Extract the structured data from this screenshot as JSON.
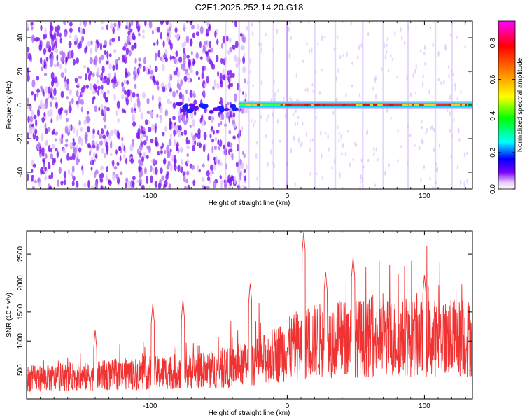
{
  "figure_title": "C2E1.2025.252.14.20.G18",
  "chart_data": [
    {
      "type": "heatmap",
      "title": "C2E1.2025.252.14.20.G18",
      "xlabel": "Height of straight line (km)",
      "ylabel": "Frequency (Hz)",
      "xlim": [
        -190,
        135
      ],
      "ylim": [
        -50,
        50
      ],
      "x_ticks": [
        -100,
        0,
        100
      ],
      "y_ticks": [
        -40,
        -20,
        0,
        20,
        40
      ],
      "colorbar": {
        "label": "Normalized spectral amplitude",
        "range": [
          0,
          0.92
        ],
        "ticks": [
          0.0,
          0.2,
          0.4,
          0.6,
          0.8
        ]
      },
      "features": [
        {
          "name": "broadband noise",
          "x_range": [
            -190,
            -35
          ],
          "amplitude": 0.15
        },
        {
          "name": "signal onset",
          "x_range": [
            -80,
            -35
          ],
          "frequency": -2,
          "amplitude": 0.3
        },
        {
          "name": "carrier line",
          "x_range": [
            -35,
            135
          ],
          "frequency": 0,
          "amplitude": 0.85
        }
      ]
    },
    {
      "type": "line",
      "xlabel": "Height of straight line (km)",
      "ylabel": "SNR (10 * v/v)",
      "xlim": [
        -190,
        135
      ],
      "ylim": [
        0,
        2900
      ],
      "x_ticks": [
        -100,
        0,
        100
      ],
      "y_ticks": [
        500,
        1000,
        1500,
        2000,
        2500
      ],
      "series": [
        {
          "name": "SNR",
          "color": "#f03232",
          "trend_x": [
            -190,
            -150,
            -100,
            -50,
            -20,
            0,
            20,
            50,
            100,
            135
          ],
          "trend_y": [
            350,
            380,
            450,
            500,
            650,
            850,
            1000,
            1050,
            1050,
            1050
          ],
          "peaks": [
            {
              "x": 12,
              "y": 2880
            },
            {
              "x": -98,
              "y": 1650
            },
            {
              "x": -76,
              "y": 1720
            },
            {
              "x": 28,
              "y": 2200
            },
            {
              "x": 48,
              "y": 2450
            },
            {
              "x": -27,
              "y": 2000
            },
            {
              "x": 100,
              "y": 2150
            },
            {
              "x": -140,
              "y": 1200
            }
          ]
        }
      ]
    }
  ]
}
